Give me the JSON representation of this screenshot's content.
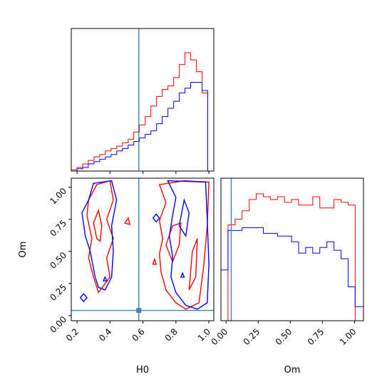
{
  "colors": {
    "series_a": "#ff0000",
    "series_b": "#0000ff",
    "truth": "#4682b4"
  },
  "chart_data": {
    "type": "corner",
    "parameters": [
      "H0",
      "Om"
    ],
    "xlabel_H0": "H0",
    "xlabel_Om": "Om",
    "ylabel_Om": "Om",
    "truths": {
      "H0": 0.575,
      "Om": 0.04
    },
    "H0_ticks": [
      "0.2",
      "0.4",
      "0.6",
      "0.8",
      "1.0"
    ],
    "Om_ticks": [
      "0.00",
      "0.25",
      "0.50",
      "0.75",
      "1.00"
    ],
    "H0_range": [
      0.165,
      1.03
    ],
    "Om_range": [
      -0.04,
      1.07
    ],
    "hist_H0": {
      "edges": [
        0.165,
        0.1995,
        0.234,
        0.2685,
        0.303,
        0.3375,
        0.372,
        0.4065,
        0.441,
        0.4755,
        0.51,
        0.5445,
        0.579,
        0.6135,
        0.648,
        0.6825,
        0.717,
        0.7515,
        0.786,
        0.8205,
        0.855,
        0.8895,
        0.924,
        0.9585,
        0.993,
        1.03
      ],
      "series": [
        {
          "color": "red",
          "values": [
            1,
            3,
            6,
            9,
            12,
            14,
            17,
            19,
            21,
            24,
            27,
            33,
            39,
            46,
            55,
            63,
            69,
            72,
            79,
            90,
            100,
            94,
            84,
            66,
            0
          ]
        },
        {
          "color": "blue",
          "values": [
            0,
            2,
            3,
            6,
            8,
            10,
            12,
            14,
            17,
            19,
            22,
            25,
            28,
            31,
            34,
            40,
            46,
            53,
            59,
            66,
            70,
            75,
            75,
            68,
            0
          ]
        }
      ]
    },
    "hist_Om": {
      "edges": [
        -0.04,
        0.015,
        0.07,
        0.125,
        0.18,
        0.235,
        0.29,
        0.345,
        0.4,
        0.455,
        0.51,
        0.565,
        0.62,
        0.675,
        0.73,
        0.785,
        0.84,
        0.895,
        0.95,
        1.005,
        1.07
      ],
      "series": [
        {
          "color": "red",
          "values": [
            0,
            34,
            36,
            39,
            43,
            45,
            44,
            43,
            44,
            42,
            43,
            41,
            41,
            44,
            40,
            40,
            43,
            42,
            41,
            0
          ]
        },
        {
          "color": "blue",
          "values": [
            18,
            32,
            32,
            33,
            33,
            33,
            31,
            31,
            30,
            30,
            28,
            24,
            26,
            24,
            26,
            28,
            25,
            22,
            12,
            5
          ]
        }
      ]
    },
    "contours": [
      {
        "color": "red",
        "level": "outer",
        "points": [
          [
            0.26,
            0.78
          ],
          [
            0.27,
            0.9
          ],
          [
            0.32,
            1.02
          ],
          [
            0.4,
            1.05
          ],
          [
            0.42,
            0.9
          ],
          [
            0.38,
            0.75
          ],
          [
            0.42,
            0.6
          ],
          [
            0.38,
            0.45
          ],
          [
            0.4,
            0.3
          ],
          [
            0.33,
            0.18
          ],
          [
            0.3,
            0.3
          ],
          [
            0.27,
            0.45
          ],
          [
            0.29,
            0.6
          ]
        ]
      },
      {
        "color": "red",
        "level": "inner",
        "points": [
          [
            0.32,
            0.6
          ],
          [
            0.3,
            0.72
          ],
          [
            0.33,
            0.82
          ],
          [
            0.35,
            0.7
          ],
          [
            0.34,
            0.58
          ]
        ]
      },
      {
        "color": "red",
        "level": "outer",
        "points": [
          [
            0.7,
            1.02
          ],
          [
            0.74,
            0.88
          ],
          [
            0.7,
            0.74
          ],
          [
            0.72,
            0.6
          ],
          [
            0.7,
            0.48
          ],
          [
            0.71,
            0.34
          ],
          [
            0.74,
            0.2
          ],
          [
            0.8,
            0.1
          ],
          [
            0.86,
            0.05
          ],
          [
            0.94,
            0.1
          ],
          [
            0.97,
            0.4
          ],
          [
            0.99,
            0.7
          ],
          [
            1.0,
            1.04
          ],
          [
            0.85,
            1.05
          ]
        ]
      },
      {
        "color": "red",
        "level": "inner",
        "points": [
          [
            0.74,
            0.55
          ],
          [
            0.78,
            0.7
          ],
          [
            0.83,
            0.72
          ],
          [
            0.82,
            0.55
          ],
          [
            0.78,
            0.42
          ]
        ]
      },
      {
        "color": "red",
        "level": "inner",
        "points": [
          [
            0.88,
            0.2
          ],
          [
            0.9,
            0.5
          ],
          [
            0.93,
            0.6
          ],
          [
            0.92,
            0.3
          ]
        ]
      },
      {
        "color": "red",
        "level": "inner",
        "points": [
          [
            0.49,
            0.72
          ],
          [
            0.51,
            0.76
          ],
          [
            0.52,
            0.71
          ]
        ]
      },
      {
        "color": "red",
        "level": "inner",
        "points": [
          [
            0.66,
            0.4
          ],
          [
            0.67,
            0.44
          ],
          [
            0.68,
            0.4
          ]
        ]
      },
      {
        "color": "blue",
        "level": "outer",
        "points": [
          [
            0.3,
            1.03
          ],
          [
            0.27,
            0.9
          ],
          [
            0.23,
            0.8
          ],
          [
            0.25,
            0.62
          ],
          [
            0.28,
            0.5
          ],
          [
            0.31,
            0.3
          ],
          [
            0.33,
            0.22
          ],
          [
            0.37,
            0.2
          ],
          [
            0.41,
            0.3
          ],
          [
            0.42,
            0.5
          ],
          [
            0.41,
            0.7
          ],
          [
            0.44,
            0.9
          ],
          [
            0.41,
            1.05
          ]
        ]
      },
      {
        "color": "blue",
        "level": "outer",
        "points": [
          [
            0.75,
            1.05
          ],
          [
            0.8,
            0.92
          ],
          [
            0.78,
            0.78
          ],
          [
            0.76,
            0.62
          ],
          [
            0.78,
            0.46
          ],
          [
            0.77,
            0.3
          ],
          [
            0.8,
            0.18
          ],
          [
            0.86,
            0.08
          ],
          [
            0.93,
            0.05
          ],
          [
            0.99,
            0.1
          ],
          [
            1.0,
            0.4
          ],
          [
            0.99,
            0.75
          ],
          [
            0.98,
            1.04
          ]
        ]
      },
      {
        "color": "blue",
        "level": "inner",
        "points": [
          [
            0.82,
            0.7
          ],
          [
            0.85,
            0.9
          ],
          [
            0.88,
            0.8
          ],
          [
            0.86,
            0.62
          ]
        ]
      },
      {
        "color": "blue",
        "level": "inner",
        "points": [
          [
            0.22,
            0.14
          ],
          [
            0.24,
            0.17
          ],
          [
            0.26,
            0.14
          ],
          [
            0.24,
            0.11
          ]
        ]
      },
      {
        "color": "blue",
        "level": "inner",
        "points": [
          [
            0.66,
            0.76
          ],
          [
            0.68,
            0.79
          ],
          [
            0.7,
            0.76
          ],
          [
            0.68,
            0.73
          ]
        ]
      },
      {
        "color": "blue",
        "level": "inner",
        "points": [
          [
            0.83,
            0.3
          ],
          [
            0.84,
            0.33
          ],
          [
            0.85,
            0.3
          ]
        ]
      },
      {
        "color": "blue",
        "level": "inner",
        "points": [
          [
            0.36,
            0.27
          ],
          [
            0.37,
            0.3
          ],
          [
            0.38,
            0.27
          ]
        ]
      }
    ]
  }
}
